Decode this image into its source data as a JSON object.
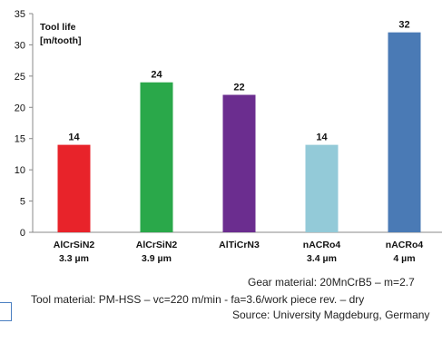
{
  "chart_data": {
    "type": "bar",
    "ylabel_lines": [
      "Tool life",
      "[m/tooth]"
    ],
    "ylim": [
      0,
      35
    ],
    "yticks": [
      0,
      5,
      10,
      15,
      20,
      25,
      30,
      35
    ],
    "categories": [
      [
        "AlCrSiN2",
        "3.3 µm"
      ],
      [
        "AlCrSiN2",
        "3.9 µm"
      ],
      [
        "AlTiCrN3"
      ],
      [
        "nACRo4",
        "3.4 µm"
      ],
      [
        "nACRo4",
        "4 µm"
      ]
    ],
    "values": [
      14,
      24,
      22,
      14,
      32
    ],
    "colors": [
      "#e8232a",
      "#2aa84a",
      "#6b2d8f",
      "#93cad8",
      "#4a7ab5"
    ],
    "grid": false,
    "legend": "none"
  },
  "footnotes": {
    "line1": "Gear material: 20MnCrB5 – m=2.7",
    "line2": "Tool material: PM-HSS – vc=220 m/min  - fa=3.6/work piece rev. – dry",
    "line3": "Source: University Magdeburg, Germany"
  }
}
